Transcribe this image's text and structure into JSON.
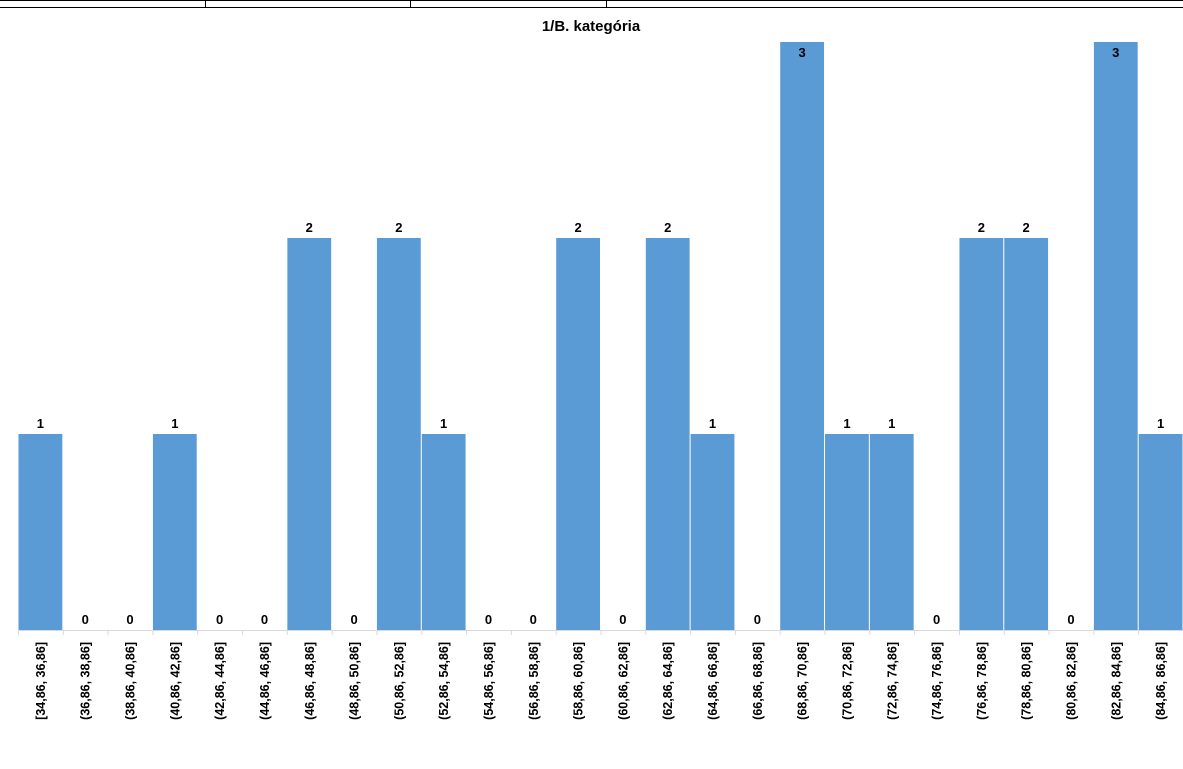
{
  "chart_data": {
    "type": "bar",
    "title": "1/B. kategória",
    "xlabel": "",
    "ylabel": "",
    "ylim": [
      0,
      3
    ],
    "grid": false,
    "legend": "none",
    "bar_color": "#5b9bd5",
    "categories": [
      "[34,86, 36,86]",
      "(36,86, 38,86]",
      "(38,86, 40,86]",
      "(40,86, 42,86]",
      "(42,86, 44,86]",
      "(44,86, 46,86]",
      "(46,86, 48,86]",
      "(48,86, 50,86]",
      "(50,86, 52,86]",
      "(52,86, 54,86]",
      "(54,86, 56,86]",
      "(56,86, 58,86]",
      "(58,86, 60,86]",
      "(60,86, 62,86]",
      "(62,86, 64,86]",
      "(64,86, 66,86]",
      "(66,86, 68,86]",
      "(68,86, 70,86]",
      "(70,86, 72,86]",
      "(72,86, 74,86]",
      "(74,86, 76,86]",
      "(76,86, 78,86]",
      "(78,86, 80,86]",
      "(80,86, 82,86]",
      "(82,86, 84,86]",
      "(84,86, 86,86]"
    ],
    "values": [
      1,
      0,
      0,
      1,
      0,
      0,
      2,
      0,
      2,
      1,
      0,
      0,
      2,
      0,
      2,
      1,
      0,
      3,
      1,
      1,
      0,
      2,
      2,
      0,
      3,
      1
    ]
  }
}
